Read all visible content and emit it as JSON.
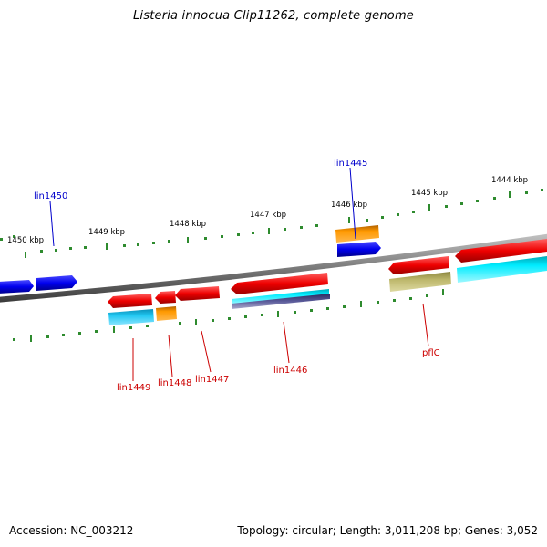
{
  "title": "Listeria innocua Clip11262, complete genome",
  "footer": {
    "accession": "Accession: NC_003212",
    "stats": "Topology: circular; Length: 3,011,208 bp; Genes: 3,052"
  },
  "scale_labels": [
    "1450 kbp",
    "1449 kbp",
    "1448 kbp",
    "1447 kbp",
    "1446 kbp",
    "1445 kbp",
    "1444 kbp"
  ],
  "gene_labels": {
    "blue": [
      "lin1450",
      "lin1445"
    ],
    "red": [
      "lin1449",
      "lin1448",
      "lin1447",
      "lin1446",
      "pflC"
    ]
  },
  "colors": {
    "backbone": "#808080",
    "tick": "#2e8b2e",
    "gene_blue": "#0000ee",
    "gene_red": "#ee0000",
    "orange": "#ff9900",
    "cyan": "#00e5ff",
    "sky": "#1ec8f0",
    "olive": "#bdb76b",
    "slate": "#5b5b9a",
    "label_blue": "#0000cc",
    "label_red": "#cc0000"
  }
}
